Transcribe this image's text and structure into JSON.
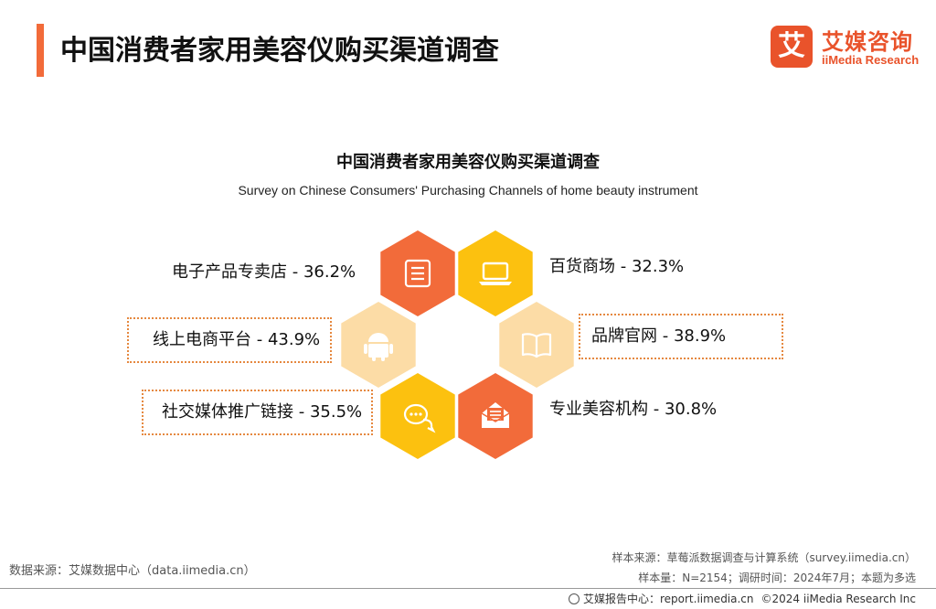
{
  "header": {
    "title": "中国消费者家用美容仪购买渠道调查"
  },
  "logo": {
    "mark": "艾",
    "cn": "艾媒咨询",
    "en": "iiMedia Research"
  },
  "chart_data": {
    "type": "hexagon-infographic",
    "title": "中国消费者家用美容仪购买渠道调查",
    "subtitle": "Survey on Chinese Consumers' Purchasing Channels of home beauty instrument",
    "unit": "%",
    "items": [
      {
        "label": "电子产品专卖店 - 36.2%",
        "name": "电子产品专卖店",
        "value": 36.2,
        "color": "#f26b3a",
        "icon": "list-icon",
        "boxed": false
      },
      {
        "label": "百货商场 - 32.3%",
        "name": "百货商场",
        "value": 32.3,
        "color": "#fcc10f",
        "icon": "laptop-icon",
        "boxed": false
      },
      {
        "label": "线上电商平台 - 43.9%",
        "name": "线上电商平台",
        "value": 43.9,
        "color": "#fcdca6",
        "icon": "android-icon",
        "boxed": true
      },
      {
        "label": "品牌官网 - 38.9%",
        "name": "品牌官网",
        "value": 38.9,
        "color": "#fcdca6",
        "icon": "book-icon",
        "boxed": true
      },
      {
        "label": "社交媒体推广链接 - 35.5%",
        "name": "社交媒体推广链接",
        "value": 35.5,
        "color": "#fcc10f",
        "icon": "chat-icon",
        "boxed": true
      },
      {
        "label": "专业美容机构 - 30.8%",
        "name": "专业美容机构",
        "value": 30.8,
        "color": "#f26b3a",
        "icon": "mail-icon",
        "boxed": false
      }
    ]
  },
  "footer": {
    "source_left": "数据来源：艾媒数据中心（data.iimedia.cn）",
    "sample_source": "样本来源：草莓派数据调查与计算系统（survey.iimedia.cn）",
    "sample_info": "样本量：N=2154；调研时间：2024年7月；本题为多选",
    "report_center": "艾媒报告中心：report.iimedia.cn",
    "copyright": "©2024 iiMedia Research Inc"
  }
}
